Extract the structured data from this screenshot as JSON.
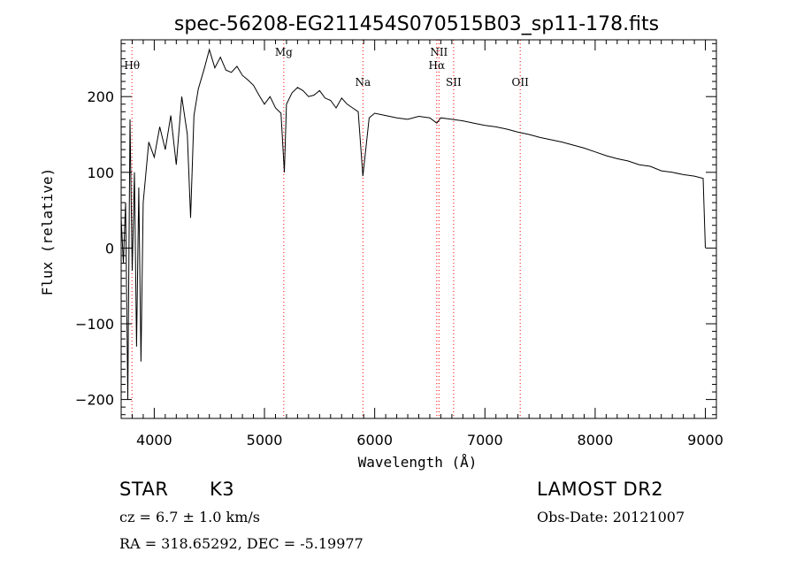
{
  "chart_data": {
    "type": "line",
    "title": "spec-56208-EG211454S070515B03_sp11-178.fits",
    "xlabel": "Wavelength (Å)",
    "ylabel": "Flux (relative)",
    "xlim": [
      3700,
      9100
    ],
    "ylim": [
      -225,
      275
    ],
    "xticks": [
      4000,
      5000,
      6000,
      7000,
      8000,
      9000
    ],
    "yticks": [
      -200,
      -100,
      0,
      100,
      200
    ],
    "line_color": "#000000",
    "marker_color": "#ff0000",
    "series": [
      {
        "x": [
          3700,
          3720,
          3740,
          3760,
          3780,
          3800,
          3820,
          3840,
          3860,
          3880,
          3900,
          3950,
          4000,
          4050,
          4100,
          4150,
          4200,
          4250,
          4300,
          4330,
          4360,
          4400,
          4450,
          4500,
          4550,
          4600,
          4650,
          4700,
          4750,
          4800,
          4850,
          4900,
          4950,
          5000,
          5050,
          5100,
          5150,
          5180,
          5200,
          5250,
          5300,
          5350,
          5400,
          5450,
          5500,
          5550,
          5600,
          5650,
          5700,
          5750,
          5800,
          5850,
          5893,
          5950,
          6000,
          6100,
          6200,
          6300,
          6400,
          6500,
          6563,
          6600,
          6700,
          6800,
          6900,
          7000,
          7100,
          7200,
          7300,
          7400,
          7500,
          7600,
          7700,
          7800,
          7900,
          8000,
          8100,
          8200,
          8300,
          8400,
          8500,
          8600,
          8700,
          8800,
          8900,
          8980,
          9000
        ],
        "y": [
          40,
          -20,
          60,
          -200,
          170,
          -30,
          100,
          -130,
          80,
          -150,
          60,
          140,
          120,
          160,
          130,
          175,
          110,
          200,
          150,
          40,
          175,
          210,
          235,
          262,
          238,
          252,
          235,
          232,
          240,
          228,
          222,
          215,
          202,
          190,
          200,
          185,
          178,
          100,
          190,
          205,
          212,
          208,
          200,
          202,
          208,
          198,
          195,
          185,
          198,
          190,
          185,
          180,
          95,
          172,
          178,
          175,
          172,
          170,
          174,
          172,
          165,
          172,
          170,
          168,
          165,
          162,
          160,
          157,
          153,
          150,
          146,
          143,
          140,
          136,
          132,
          127,
          122,
          118,
          115,
          110,
          108,
          102,
          100,
          97,
          95,
          92,
          0
        ]
      }
    ],
    "line_markers": [
      {
        "label": "Hθ",
        "x": 3798
      },
      {
        "label": "Mg",
        "x": 5175
      },
      {
        "label": "Na",
        "x": 5893
      },
      {
        "label": "NII",
        "x": 6583
      },
      {
        "label": "Hα",
        "x": 6563
      },
      {
        "label": "SII",
        "x": 6716
      },
      {
        "label": "OII",
        "x": 7320
      }
    ]
  },
  "info": {
    "object_class": "STAR",
    "subclass": "K3",
    "survey": "LAMOST DR2",
    "cz": "cz = 6.7 ± 1.0 km/s",
    "obs_date": "Obs-Date: 20121007",
    "coords": "RA = 318.65292, DEC =  -5.19977"
  }
}
